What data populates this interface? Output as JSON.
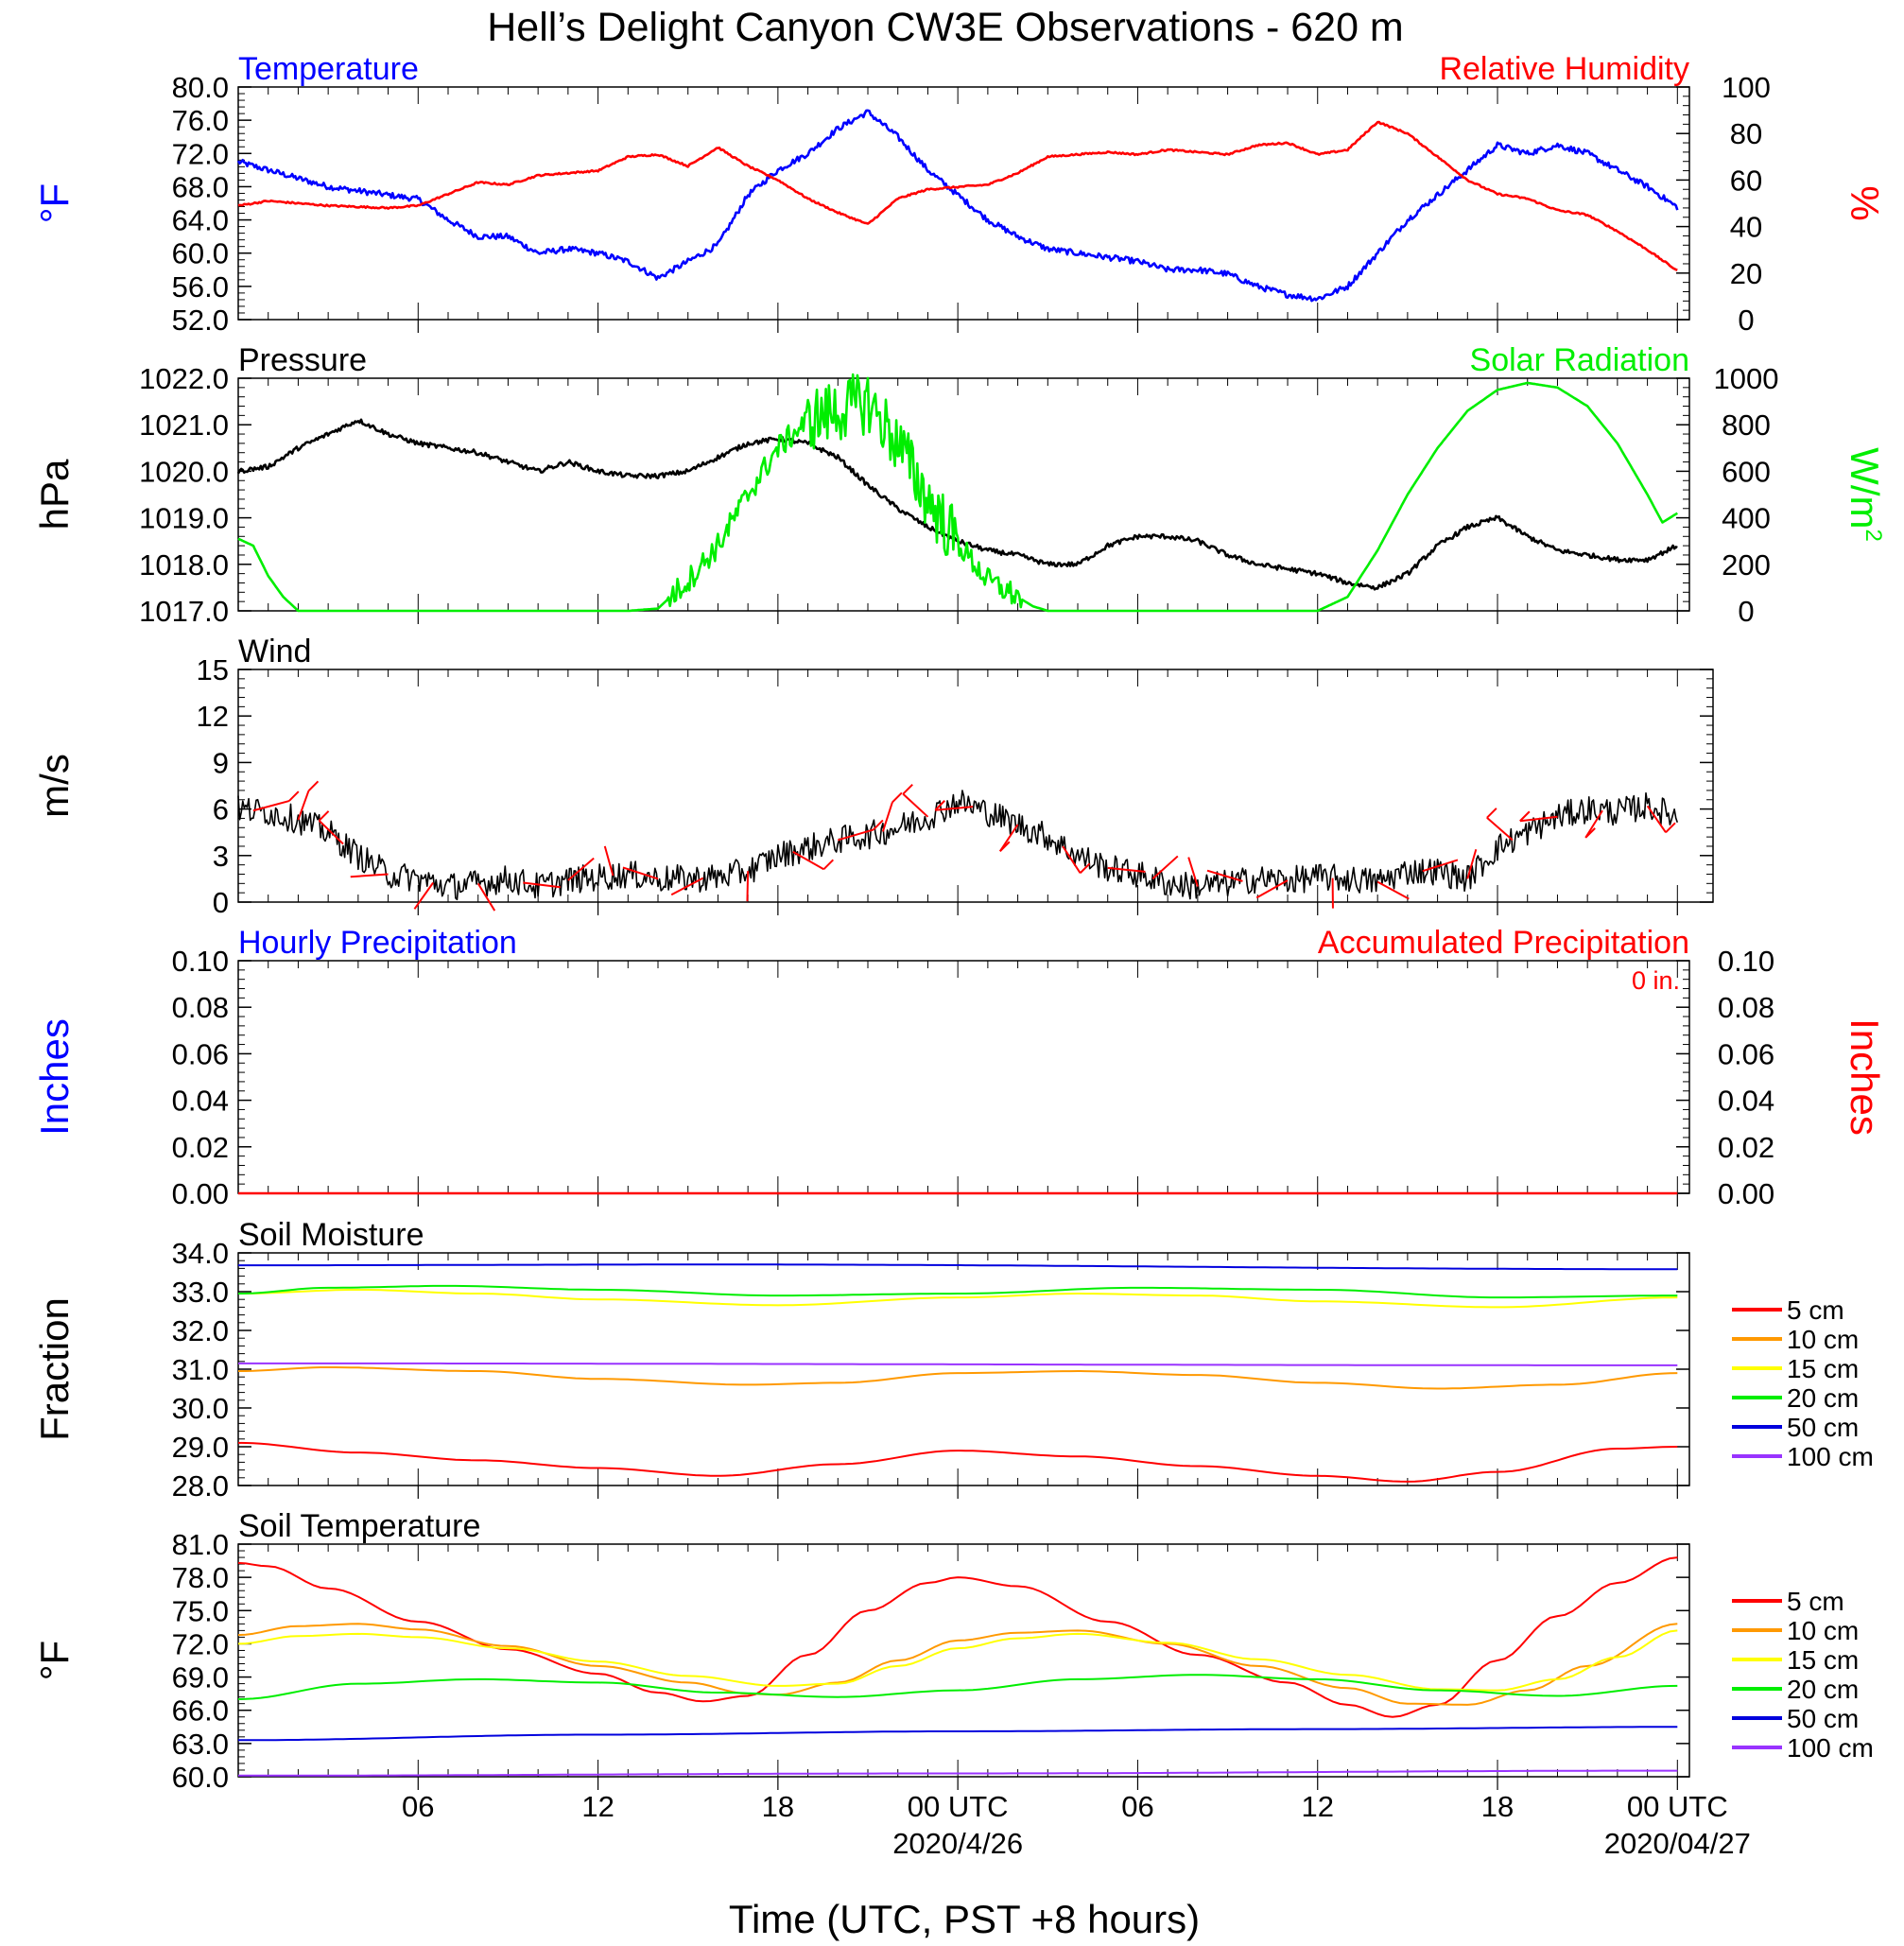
{
  "figure": {
    "title": "Hell’s Delight Canyon CW3E Observations - 620 m",
    "xlabel": "Time (UTC, PST +8 hours)",
    "x_ticks": [
      "06",
      "12",
      "18",
      "00 UTC",
      "06",
      "12",
      "18",
      "00 UTC"
    ],
    "date_labels": [
      "2020/4/26",
      "2020/04/27"
    ]
  },
  "chart_data": [
    {
      "type": "line",
      "title_left": "Temperature",
      "title_right": "Relative Humidity",
      "ylabel_left": "°F",
      "ylabel_right": "%",
      "ylim_left": [
        52,
        80
      ],
      "yticks_left": [
        "52.0",
        "56.0",
        "60.0",
        "64.0",
        "68.0",
        "72.0",
        "76.0",
        "80.0"
      ],
      "ylim_right": [
        0,
        100
      ],
      "yticks_right": [
        "0",
        "20",
        "40",
        "60",
        "80",
        "100"
      ],
      "x_range_hours": [
        0,
        48
      ],
      "series": [
        {
          "name": "Temperature",
          "axis": "left",
          "color": "#0000ff",
          "x": [
            0,
            1,
            3,
            5,
            6,
            7,
            8,
            9,
            10,
            11,
            12,
            13,
            14,
            15,
            16,
            17,
            18,
            19,
            20,
            21,
            22,
            23,
            24,
            25,
            26,
            27,
            28,
            29,
            30,
            31,
            32,
            33,
            34,
            35,
            36,
            37,
            38,
            39,
            40,
            41,
            42,
            43,
            44,
            45,
            46,
            47,
            48
          ],
          "values": [
            71,
            70,
            68,
            67,
            66.5,
            64,
            62,
            62,
            60,
            60.5,
            60,
            59,
            57,
            59,
            61,
            67,
            70,
            72,
            75,
            77,
            74,
            70,
            67,
            64,
            62,
            60.5,
            60,
            59.5,
            59,
            58,
            58,
            57.5,
            56,
            55,
            54.5,
            56,
            60,
            64,
            67,
            70,
            73,
            72,
            73,
            72,
            70,
            68,
            65.5
          ]
        },
        {
          "name": "Relative Humidity",
          "axis": "right",
          "color": "#ff0000",
          "x": [
            0,
            1,
            3,
            5,
            6,
            7,
            8,
            9,
            10,
            11,
            12,
            13,
            14,
            15,
            16,
            17,
            18,
            19,
            20,
            21,
            22,
            23,
            24,
            25,
            26,
            27,
            28,
            29,
            30,
            31,
            32,
            33,
            34,
            35,
            36,
            37,
            38,
            39,
            40,
            41,
            42,
            43,
            44,
            45,
            46,
            47,
            48
          ],
          "values": [
            49,
            51,
            49,
            48,
            49,
            54,
            59,
            58,
            62,
            63,
            64,
            70,
            71,
            66,
            74,
            66,
            60,
            52,
            46,
            41,
            52,
            56,
            57,
            58,
            63,
            70,
            71,
            72,
            71,
            73,
            72,
            71,
            75,
            76,
            71,
            73,
            85,
            80,
            70,
            60,
            54,
            52,
            47,
            45,
            38,
            30,
            21
          ]
        }
      ]
    },
    {
      "type": "line",
      "title_left": "Pressure",
      "title_right": "Solar Radiation",
      "ylabel_left": "hPa",
      "ylabel_right": "W/m",
      "ylabel_right_sup": "2",
      "ylim_left": [
        1017,
        1022
      ],
      "yticks_left": [
        "1017.0",
        "1018.0",
        "1019.0",
        "1020.0",
        "1021.0",
        "1022.0"
      ],
      "ylim_right": [
        0,
        1000
      ],
      "yticks_right": [
        "0",
        "200",
        "400",
        "600",
        "800",
        "1000"
      ],
      "x_range_hours": [
        0,
        48
      ],
      "series": [
        {
          "name": "Pressure",
          "axis": "left",
          "color": "#000000",
          "x": [
            0,
            1,
            2,
            3,
            4,
            5,
            6,
            7,
            8,
            9,
            10,
            11,
            12,
            13,
            14,
            15,
            16,
            17,
            18,
            19,
            20,
            21,
            22,
            23,
            24,
            25,
            26,
            27,
            28,
            29,
            30,
            31,
            32,
            33,
            34,
            35,
            36,
            37,
            38,
            39,
            40,
            41,
            42,
            43,
            44,
            45,
            46,
            47,
            48
          ],
          "values": [
            1020.0,
            1020.1,
            1020.5,
            1020.8,
            1021.1,
            1020.8,
            1020.6,
            1020.5,
            1020.4,
            1020.2,
            1020.0,
            1020.2,
            1020.0,
            1019.9,
            1019.9,
            1020.0,
            1020.3,
            1020.6,
            1020.7,
            1020.6,
            1020.3,
            1019.7,
            1019.2,
            1018.8,
            1018.5,
            1018.3,
            1018.2,
            1018.0,
            1018.0,
            1018.4,
            1018.6,
            1018.6,
            1018.5,
            1018.2,
            1018.0,
            1017.9,
            1017.8,
            1017.6,
            1017.5,
            1017.8,
            1018.4,
            1018.8,
            1019.0,
            1018.6,
            1018.3,
            1018.2,
            1018.1,
            1018.1,
            1018.4
          ]
        },
        {
          "name": "Solar Radiation",
          "axis": "right",
          "color": "#00ee00",
          "x": [
            0,
            0.5,
            1,
            1.5,
            2,
            3,
            6,
            10,
            12,
            13,
            14,
            15,
            16,
            17,
            18,
            19,
            20,
            21,
            22,
            23,
            24,
            25,
            26,
            26.5,
            27,
            28,
            30,
            36,
            37,
            38,
            39,
            40,
            41,
            42,
            43,
            44,
            45,
            46,
            47,
            47.5,
            48
          ],
          "values": [
            310,
            280,
            150,
            60,
            0,
            0,
            0,
            0,
            0,
            0,
            10,
            130,
            280,
            500,
            700,
            820,
            860,
            900,
            720,
            480,
            290,
            130,
            60,
            20,
            0,
            0,
            0,
            0,
            60,
            260,
            500,
            700,
            860,
            950,
            980,
            960,
            880,
            720,
            500,
            380,
            420
          ]
        }
      ]
    },
    {
      "type": "line",
      "title_left": "Wind",
      "ylabel_left": "m/s",
      "ylim_left": [
        0,
        15
      ],
      "yticks_left": [
        "0",
        "3",
        "6",
        "9",
        "12",
        "15"
      ],
      "x_range_hours": [
        0,
        49
      ],
      "barbs_note": "red wind barbs drawn along the speed trace; circles denote calm",
      "series": [
        {
          "name": "Wind Speed",
          "color": "#000000",
          "x": [
            0,
            1,
            2,
            3,
            4,
            5,
            6,
            7,
            8,
            9,
            10,
            11,
            12,
            13,
            14,
            15,
            16,
            17,
            18,
            19,
            20,
            21,
            22,
            23,
            24,
            25,
            26,
            27,
            28,
            29,
            30,
            31,
            32,
            33,
            34,
            35,
            36,
            37,
            38,
            39,
            40,
            41,
            42,
            43,
            44,
            45,
            46,
            47,
            48
          ],
          "values": [
            6.0,
            5.8,
            5.3,
            4.5,
            3.0,
            1.8,
            1.5,
            1.0,
            1.2,
            1.5,
            1.0,
            1.4,
            1.6,
            1.8,
            1.5,
            1.5,
            1.6,
            2.0,
            3.0,
            3.5,
            4.0,
            4.3,
            4.8,
            5.5,
            6.5,
            5.8,
            5.0,
            4.2,
            3.0,
            2.2,
            1.8,
            1.2,
            1.0,
            1.2,
            1.5,
            1.4,
            1.6,
            1.5,
            1.3,
            2.0,
            2.0,
            1.5,
            3.5,
            4.5,
            5.5,
            6.0,
            5.8,
            6.2,
            5.5
          ]
        }
      ]
    },
    {
      "type": "bar",
      "title_left": "Hourly Precipitation",
      "title_right": "Accumulated Precipitation",
      "accum_label": "0 in.",
      "ylabel_left": "Inches",
      "ylabel_right": "Inches",
      "ylim_left": [
        0,
        0.1
      ],
      "yticks_left": [
        "0.00",
        "0.02",
        "0.04",
        "0.06",
        "0.08",
        "0.10"
      ],
      "ylim_right": [
        0,
        0.1
      ],
      "yticks_right": [
        "0.00",
        "0.02",
        "0.04",
        "0.06",
        "0.08",
        "0.10"
      ],
      "x_range_hours": [
        0,
        48
      ],
      "series": [
        {
          "name": "Hourly Precipitation",
          "axis": "left",
          "color": "#0000ff",
          "values_all_zero": true
        },
        {
          "name": "Accumulated Precipitation",
          "axis": "right",
          "color": "#ff0000",
          "x": [
            0,
            48
          ],
          "values": [
            0,
            0
          ]
        }
      ]
    },
    {
      "type": "line",
      "title_left": "Soil Moisture",
      "ylabel_left": "Fraction",
      "ylim_left": [
        28,
        34
      ],
      "yticks_left": [
        "28.0",
        "29.0",
        "30.0",
        "31.0",
        "32.0",
        "33.0",
        "34.0"
      ],
      "x_range_hours": [
        0,
        48
      ],
      "legend_position": "right",
      "series": [
        {
          "name": "5 cm",
          "color": "#ff0000",
          "x": [
            0,
            4,
            8,
            12,
            16,
            20,
            24,
            28,
            32,
            36,
            39,
            42,
            46,
            48
          ],
          "values": [
            29.1,
            28.85,
            28.65,
            28.45,
            28.25,
            28.55,
            28.9,
            28.75,
            28.5,
            28.25,
            28.1,
            28.35,
            28.95,
            29.0
          ]
        },
        {
          "name": "10 cm",
          "color": "#ff9900",
          "x": [
            0,
            3,
            8,
            12,
            17,
            20,
            24,
            28,
            32,
            36,
            40,
            44,
            48
          ],
          "values": [
            30.95,
            31.05,
            30.95,
            30.75,
            30.6,
            30.65,
            30.9,
            30.95,
            30.85,
            30.65,
            30.5,
            30.6,
            30.9
          ]
        },
        {
          "name": "15 cm",
          "color": "#ffff00",
          "x": [
            0,
            4,
            8,
            12,
            18,
            24,
            28,
            32,
            36,
            42,
            48
          ],
          "values": [
            32.95,
            33.05,
            32.95,
            32.8,
            32.65,
            32.85,
            32.95,
            32.9,
            32.75,
            32.6,
            32.85
          ]
        },
        {
          "name": "20 cm",
          "color": "#00ee00",
          "x": [
            0,
            3,
            7,
            12,
            18,
            24,
            30,
            36,
            42,
            48
          ],
          "values": [
            32.95,
            33.1,
            33.15,
            33.05,
            32.9,
            32.95,
            33.1,
            33.05,
            32.85,
            32.9
          ]
        },
        {
          "name": "50 cm",
          "color": "#0000dd",
          "x": [
            0,
            16,
            48
          ],
          "values": [
            33.68,
            33.7,
            33.58
          ]
        },
        {
          "name": "100 cm",
          "color": "#9933ff",
          "x": [
            0,
            48
          ],
          "values": [
            31.15,
            31.1
          ]
        }
      ]
    },
    {
      "type": "line",
      "title_left": "Soil Temperature",
      "ylabel_left": "°F",
      "ylim_left": [
        60,
        81
      ],
      "yticks_left": [
        "60.0",
        "63.0",
        "66.0",
        "69.0",
        "72.0",
        "75.0",
        "78.0",
        "81.0"
      ],
      "x_range_hours": [
        0,
        48
      ],
      "legend_position": "right",
      "series": [
        {
          "name": "5 cm",
          "color": "#ff0000",
          "x": [
            0,
            1,
            3,
            6,
            9,
            12,
            14,
            15.5,
            17,
            19,
            21,
            23,
            24,
            26,
            29,
            32,
            35,
            37,
            38.5,
            40,
            42,
            44,
            46,
            48
          ],
          "values": [
            79.3,
            79,
            77,
            74,
            71.5,
            69.3,
            67.6,
            66.8,
            67.3,
            71,
            75,
            77.5,
            78,
            77.2,
            74,
            71,
            68.5,
            66.5,
            65.4,
            66.5,
            70.5,
            74.5,
            77.5,
            79.8
          ]
        },
        {
          "name": "10 cm",
          "color": "#ff9900",
          "x": [
            0,
            2,
            4,
            6,
            9,
            12,
            15,
            17,
            18,
            20,
            22,
            24,
            26,
            28,
            31,
            34,
            37,
            39,
            41,
            43,
            45,
            48
          ],
          "values": [
            72.8,
            73.6,
            73.8,
            73.3,
            71.8,
            70,
            68.5,
            67.5,
            67.4,
            68.5,
            70.5,
            72.3,
            73,
            73.2,
            72,
            70,
            68,
            66.6,
            66.5,
            67.8,
            70,
            73.8
          ]
        },
        {
          "name": "15 cm",
          "color": "#ffff00",
          "x": [
            0,
            2,
            4,
            6,
            9,
            12,
            15,
            18,
            20,
            22,
            24,
            26,
            28,
            31,
            34,
            37,
            40,
            42,
            44,
            46,
            48
          ],
          "values": [
            72,
            72.7,
            72.9,
            72.6,
            71.6,
            70.4,
            69.1,
            68.2,
            68.4,
            70,
            71.6,
            72.5,
            72.9,
            72.1,
            70.6,
            69.2,
            67.9,
            67.8,
            68.8,
            70.8,
            73.2
          ]
        },
        {
          "name": "20 cm",
          "color": "#00ee00",
          "x": [
            0,
            4,
            8,
            12,
            16,
            20,
            24,
            28,
            32,
            36,
            40,
            44,
            48
          ],
          "values": [
            67,
            68.4,
            68.8,
            68.5,
            67.6,
            67.2,
            67.8,
            68.8,
            69.2,
            68.8,
            67.8,
            67.3,
            68.2
          ]
        },
        {
          "name": "50 cm",
          "color": "#0000dd",
          "x": [
            0,
            12,
            24,
            36,
            48
          ],
          "values": [
            63.3,
            63.8,
            64.1,
            64.3,
            64.5
          ]
        },
        {
          "name": "100 cm",
          "color": "#9933ff",
          "x": [
            0,
            24,
            48
          ],
          "values": [
            60.1,
            60.3,
            60.55
          ]
        }
      ]
    }
  ]
}
